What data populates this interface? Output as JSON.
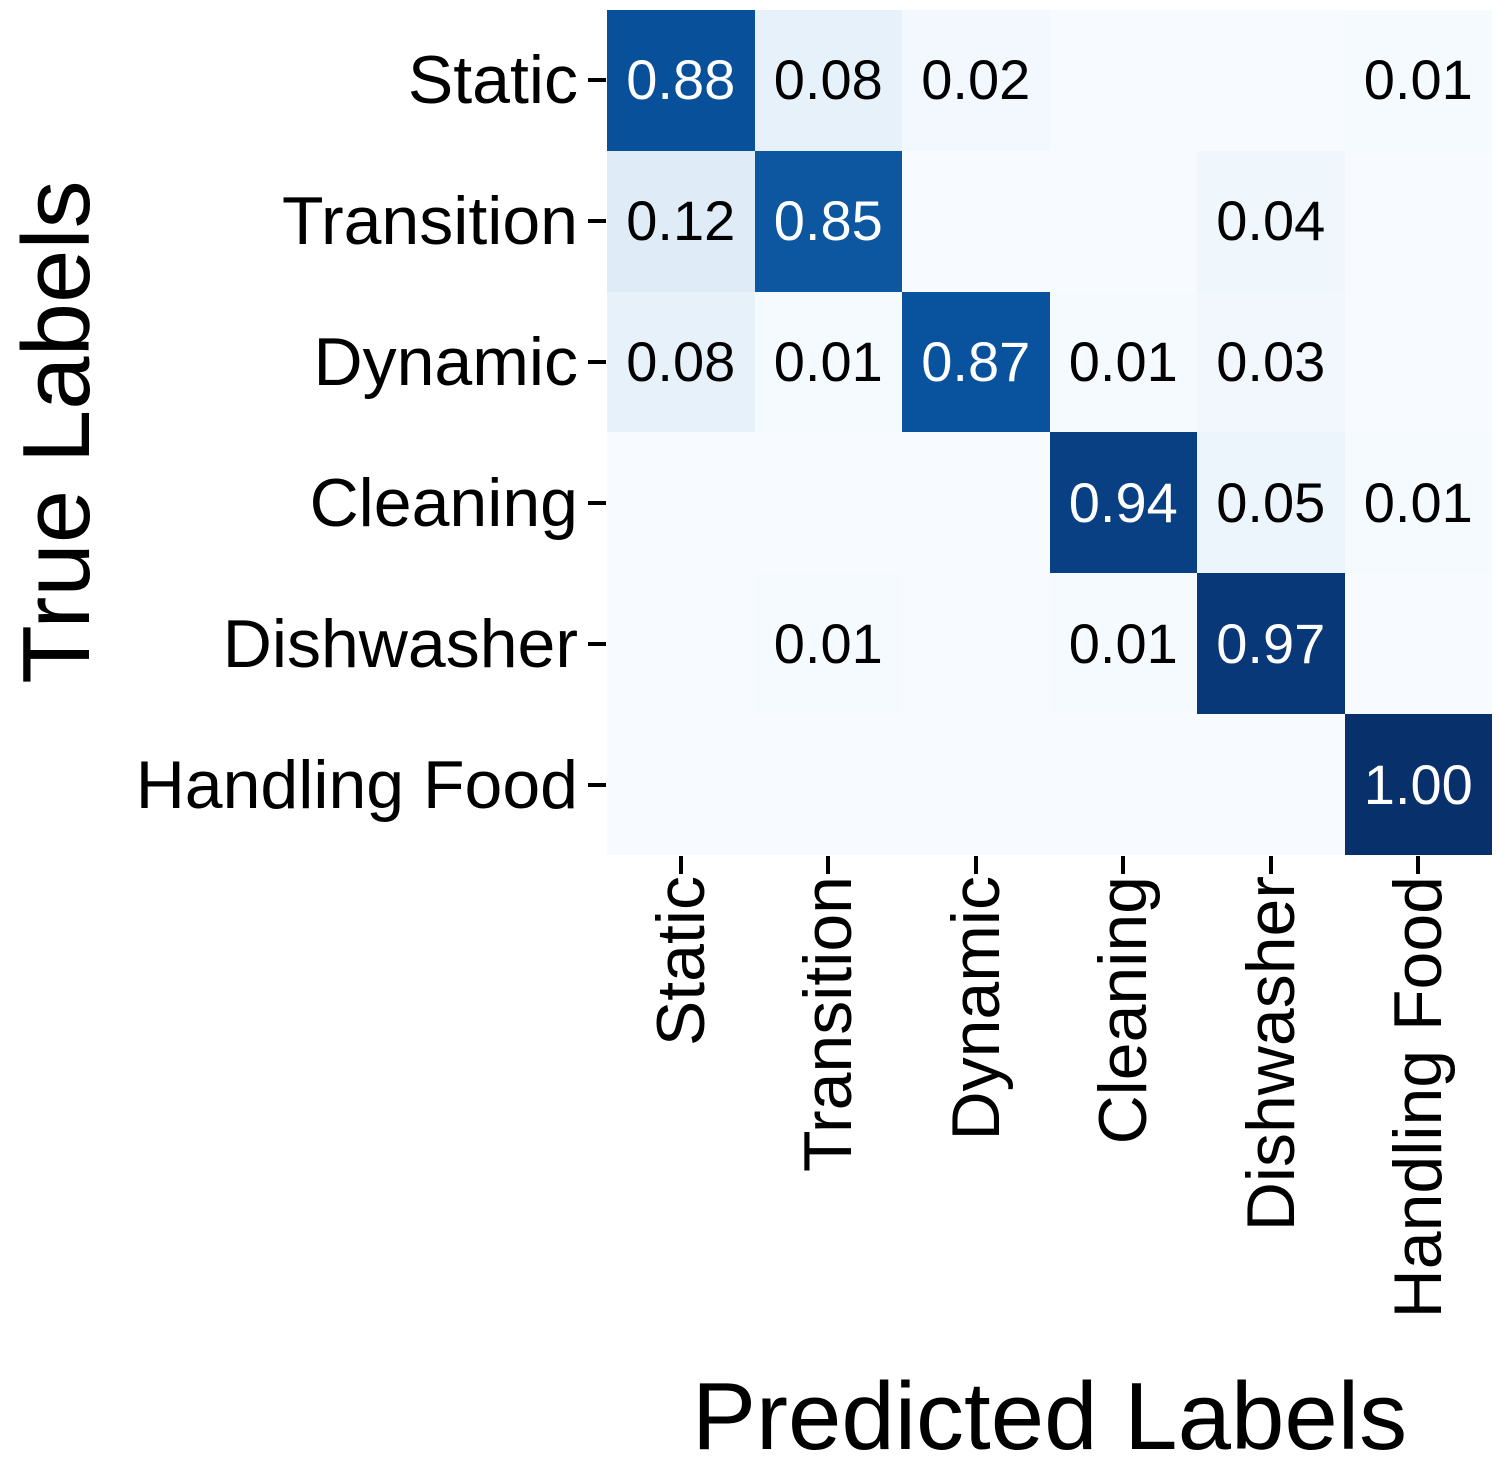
{
  "figure": {
    "x_axis_title": "Predicted Labels",
    "y_axis_title": "True Labels"
  },
  "chart_data": {
    "type": "heatmap",
    "subtype": "confusion-matrix",
    "title": "",
    "xlabel": "Predicted Labels",
    "ylabel": "True Labels",
    "x_categories": [
      "Static",
      "Transition",
      "Dynamic",
      "Cleaning",
      "Dishwasher",
      "Handling Food"
    ],
    "y_categories": [
      "Static",
      "Transition",
      "Dynamic",
      "Cleaning",
      "Dishwasher",
      "Handling Food"
    ],
    "matrix": [
      [
        0.88,
        0.08,
        0.02,
        0.0,
        0.0,
        0.01
      ],
      [
        0.12,
        0.85,
        0.0,
        0.0,
        0.04,
        0.0
      ],
      [
        0.08,
        0.01,
        0.87,
        0.01,
        0.03,
        0.0
      ],
      [
        0.0,
        0.0,
        0.0,
        0.94,
        0.05,
        0.01
      ],
      [
        0.0,
        0.01,
        0.0,
        0.01,
        0.97,
        0.0
      ],
      [
        0.0,
        0.0,
        0.0,
        0.0,
        0.0,
        1.0
      ]
    ],
    "annotation_format": "two decimals, zero values left blank",
    "colormap": "Blues",
    "vmin": 0,
    "vmax": 1,
    "grid": false,
    "legend": "none",
    "colors": {
      "background": "#ffffff",
      "cmap_low": "#f7fbff",
      "cmap_high": "#08306b",
      "annotation_dark_cell": "#ffffff",
      "annotation_light_cell": "#000000",
      "tick": "#000000",
      "text": "#000000"
    }
  }
}
